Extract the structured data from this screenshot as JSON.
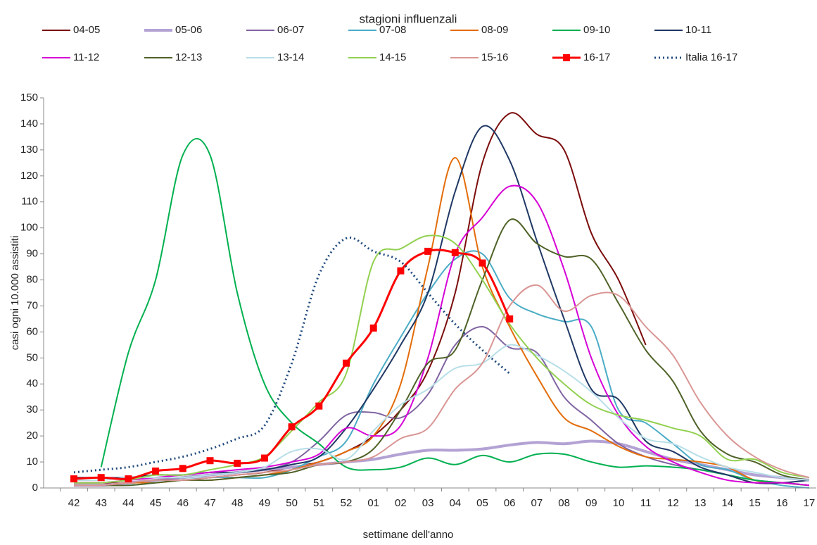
{
  "chart_data": {
    "type": "line",
    "title": "stagioni influenzali",
    "x_label": "settimane dell'anno",
    "y_label": "casi ogni 10.000 assistiti",
    "categories": [
      "42",
      "43",
      "44",
      "45",
      "46",
      "47",
      "48",
      "49",
      "50",
      "51",
      "52",
      "01",
      "02",
      "03",
      "04",
      "05",
      "06",
      "07",
      "08",
      "09",
      "10",
      "11",
      "12",
      "13",
      "14",
      "15",
      "16",
      "17"
    ],
    "ylim": [
      0,
      150
    ],
    "yticks": [
      0,
      10,
      20,
      30,
      40,
      50,
      60,
      70,
      80,
      90,
      100,
      110,
      120,
      130,
      140,
      150
    ],
    "grid": false,
    "legend": "top",
    "series": [
      {
        "name": "04-05",
        "color": "#7b0c0c",
        "values": [
          2,
          2,
          2,
          3,
          3,
          4,
          5,
          6,
          8,
          10,
          14,
          20,
          30,
          45,
          75,
          125,
          144,
          136,
          130,
          98,
          80,
          55,
          null,
          null,
          null,
          null,
          null,
          null
        ]
      },
      {
        "name": "05-06",
        "color": "#b3a2d4",
        "width": 4,
        "values": [
          1,
          1,
          2,
          3,
          4,
          5,
          6,
          7,
          8,
          9,
          10,
          11,
          13,
          14.5,
          14.5,
          15,
          16.5,
          17.5,
          17,
          18,
          17,
          14,
          11,
          9,
          7,
          5,
          4,
          3
        ]
      },
      {
        "name": "06-07",
        "color": "#8064a2",
        "values": [
          1,
          1,
          2,
          3,
          4,
          5,
          6,
          7,
          10,
          18,
          28,
          29,
          27,
          36,
          55,
          62,
          54,
          52,
          35,
          26,
          17,
          12,
          9,
          7,
          5,
          3,
          2,
          1
        ]
      },
      {
        "name": "07-08",
        "color": "#4bacc6",
        "values": [
          1,
          1,
          1,
          2,
          3,
          4,
          4,
          4,
          7,
          12,
          18,
          40,
          58,
          75,
          88,
          90,
          73,
          67,
          64,
          62,
          30,
          25,
          17,
          9,
          7,
          3,
          1,
          0
        ]
      },
      {
        "name": "08-09",
        "color": "#e36c09",
        "values": [
          1,
          1,
          2,
          2,
          3,
          3,
          4,
          5,
          7,
          10,
          14,
          20,
          40,
          85,
          127,
          85,
          62,
          43,
          27,
          22,
          16,
          12,
          11,
          10,
          8,
          3,
          2,
          1
        ]
      },
      {
        "name": "09-10",
        "color": "#00b050",
        "values": [
          null,
          8,
          52,
          80,
          128,
          128,
          75,
          40,
          25,
          17,
          8,
          7,
          8,
          11.5,
          9,
          12.5,
          10,
          13,
          13,
          10,
          8,
          8.5,
          8,
          7,
          5,
          3,
          2,
          1
        ]
      },
      {
        "name": "10-11",
        "color": "#1f3864",
        "values": [
          4,
          4,
          4,
          5,
          5,
          6,
          6,
          7,
          9,
          12,
          23,
          38,
          55,
          75,
          114,
          139,
          126,
          95,
          65,
          38,
          34,
          18,
          14,
          8,
          5,
          2,
          2,
          3
        ]
      },
      {
        "name": "11-12",
        "color": "#d600d6",
        "values": [
          2,
          2,
          3,
          4,
          5,
          6,
          7,
          8,
          10,
          13,
          23,
          20,
          24,
          50,
          90,
          104,
          116,
          110,
          84,
          50,
          28,
          16,
          10,
          6,
          3,
          2,
          2,
          1
        ]
      },
      {
        "name": "12-13",
        "color": "#4f6228",
        "values": [
          1,
          1,
          1,
          2,
          3,
          3,
          4,
          5,
          6,
          9,
          10,
          15,
          30,
          48,
          53,
          80,
          103,
          94,
          89,
          88,
          71,
          53,
          41,
          22,
          13,
          10,
          5,
          3
        ]
      },
      {
        "name": "13-14",
        "color": "#b7dee8",
        "values": [
          3,
          3,
          4,
          4,
          4,
          5,
          6,
          8,
          14,
          15,
          11,
          22,
          32,
          38,
          46,
          48,
          55,
          51,
          45,
          37,
          27,
          19,
          17,
          12,
          8,
          6,
          4,
          3
        ]
      },
      {
        "name": "14-15",
        "color": "#92d050",
        "values": [
          2,
          2,
          3,
          5,
          5,
          7,
          9,
          12,
          22,
          33,
          44,
          87,
          92,
          97,
          94,
          80,
          63,
          50,
          40,
          32,
          28,
          26,
          23,
          20,
          11,
          11,
          6,
          4
        ]
      },
      {
        "name": "15-16",
        "color": "#d99694",
        "values": [
          1,
          1,
          2,
          3,
          3,
          4,
          5,
          6,
          7,
          9,
          10,
          12,
          19,
          23,
          38,
          48,
          70,
          78,
          68,
          74,
          74,
          62,
          51,
          33,
          20,
          12,
          7,
          4
        ]
      },
      {
        "name": "16-17",
        "color": "#ff0000",
        "width": 3,
        "marker": "square",
        "values": [
          3.5,
          4,
          3.5,
          6.5,
          7.5,
          10.5,
          9.5,
          11.5,
          23.5,
          31.5,
          48,
          61.5,
          83.5,
          91,
          90.5,
          86.5,
          65,
          null,
          null,
          null,
          null,
          null,
          null,
          null,
          null,
          null,
          null,
          null
        ]
      },
      {
        "name": "Italia 16-17",
        "color": "#1f497d",
        "width": 3,
        "dash": "dot",
        "values": [
          6,
          7,
          8,
          10,
          12,
          15,
          19,
          24,
          48,
          82,
          96,
          91,
          87,
          75,
          63,
          53,
          44,
          null,
          null,
          null,
          null,
          null,
          null,
          null,
          null,
          null,
          null,
          null
        ]
      }
    ]
  }
}
